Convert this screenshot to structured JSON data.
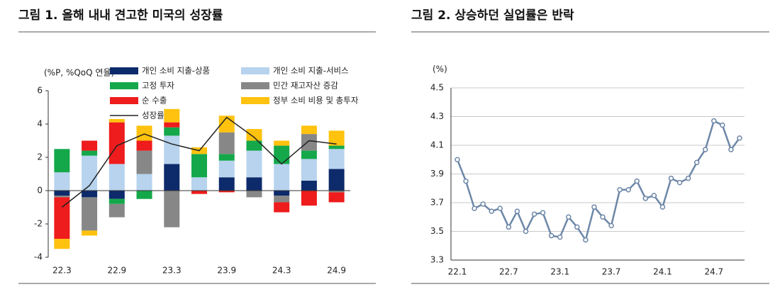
{
  "chart_data": [
    {
      "type": "stacked_bar",
      "title": "그림 1. 올해 내내 견고한 미국의 성장률",
      "y_label": "(%P, %QoQ 연율)",
      "categories": [
        "22.3",
        null,
        "22.9",
        null,
        "23.3",
        null,
        "23.9",
        null,
        "24.3",
        null,
        "24.9"
      ],
      "ylim": [
        -4,
        6
      ],
      "yticks": [
        -4,
        -2,
        0,
        2,
        4,
        6
      ],
      "series": [
        {
          "name": "개인 소비 지출-상품",
          "color": "#0d2a6b",
          "values": [
            -0.3,
            -0.4,
            -0.5,
            0,
            1.6,
            0,
            0.8,
            0.8,
            -0.3,
            0.6,
            1.3
          ]
        },
        {
          "name": "개인 소비 지출-서비스",
          "color": "#b7d3ee",
          "values": [
            1.1,
            2.1,
            1.6,
            1.0,
            1.7,
            0.8,
            1.0,
            1.6,
            1.6,
            1.3,
            1.2
          ]
        },
        {
          "name": "고정 투자",
          "color": "#14a84a",
          "values": [
            1.4,
            0.3,
            -0.3,
            -0.5,
            0.5,
            1.4,
            0.4,
            0.6,
            1.1,
            0.5,
            0.2
          ]
        },
        {
          "name": "민간 재고자산 증감",
          "color": "#878787",
          "values": [
            -0.1,
            -2.0,
            -0.8,
            1.4,
            -2.2,
            0,
            1.3,
            -0.4,
            -0.4,
            1.0,
            -0.1
          ]
        },
        {
          "name": "순 수출",
          "color": "#ee1c1c",
          "values": [
            -2.5,
            0.6,
            2.5,
            0.6,
            0.3,
            -0.2,
            -0.1,
            0,
            -0.6,
            -0.9,
            -0.6
          ]
        },
        {
          "name": "정부 소비 비용 및 총투자",
          "color": "#ffc20e",
          "values": [
            -0.6,
            -0.3,
            0.2,
            0.9,
            0.8,
            0.4,
            1.0,
            0.7,
            0.3,
            0.5,
            0.9
          ]
        },
        {
          "name": "성장률",
          "color": "#222222",
          "type": "line",
          "values": [
            -1.0,
            0.3,
            2.7,
            3.4,
            2.8,
            2.4,
            4.4,
            3.2,
            1.6,
            3.0,
            2.8
          ]
        }
      ]
    },
    {
      "type": "line",
      "title": "그림 2. 상승하던 실업률은 반락",
      "y_label": "(%)",
      "categories": [
        "22.1",
        null,
        null,
        null,
        null,
        null,
        "22.7",
        null,
        null,
        null,
        null,
        null,
        "23.1",
        null,
        null,
        null,
        null,
        null,
        "23.7",
        null,
        null,
        null,
        null,
        null,
        "24.1",
        null,
        null,
        null,
        null,
        null,
        "24.7",
        null,
        null,
        null
      ],
      "ylim": [
        3.3,
        4.5
      ],
      "yticks": [
        3.3,
        3.5,
        3.7,
        3.9,
        4.1,
        4.3,
        4.5
      ],
      "grid": true,
      "series": [
        {
          "name": "실업률",
          "color": "#6d87a8",
          "values": [
            4.0,
            3.85,
            3.66,
            3.69,
            3.64,
            3.66,
            3.53,
            3.64,
            3.5,
            3.62,
            3.63,
            3.47,
            3.46,
            3.6,
            3.53,
            3.44,
            3.67,
            3.6,
            3.54,
            3.79,
            3.79,
            3.85,
            3.73,
            3.75,
            3.67,
            3.87,
            3.84,
            3.87,
            3.98,
            4.07,
            4.27,
            4.24,
            4.07,
            4.15
          ]
        }
      ]
    }
  ]
}
